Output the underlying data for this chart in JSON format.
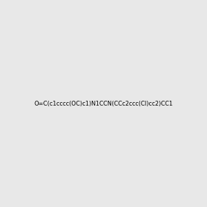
{
  "smiles": "O=C(c1cccc(OC)c1)N1CCN(CCc2ccc(Cl)cc2)CC1",
  "image_size": 300,
  "background_color": "#e8e8e8",
  "bond_color": "#000000",
  "atom_colors": {
    "N": "#0000ff",
    "O": "#ff0000",
    "Cl": "#00cc00"
  },
  "title": ""
}
